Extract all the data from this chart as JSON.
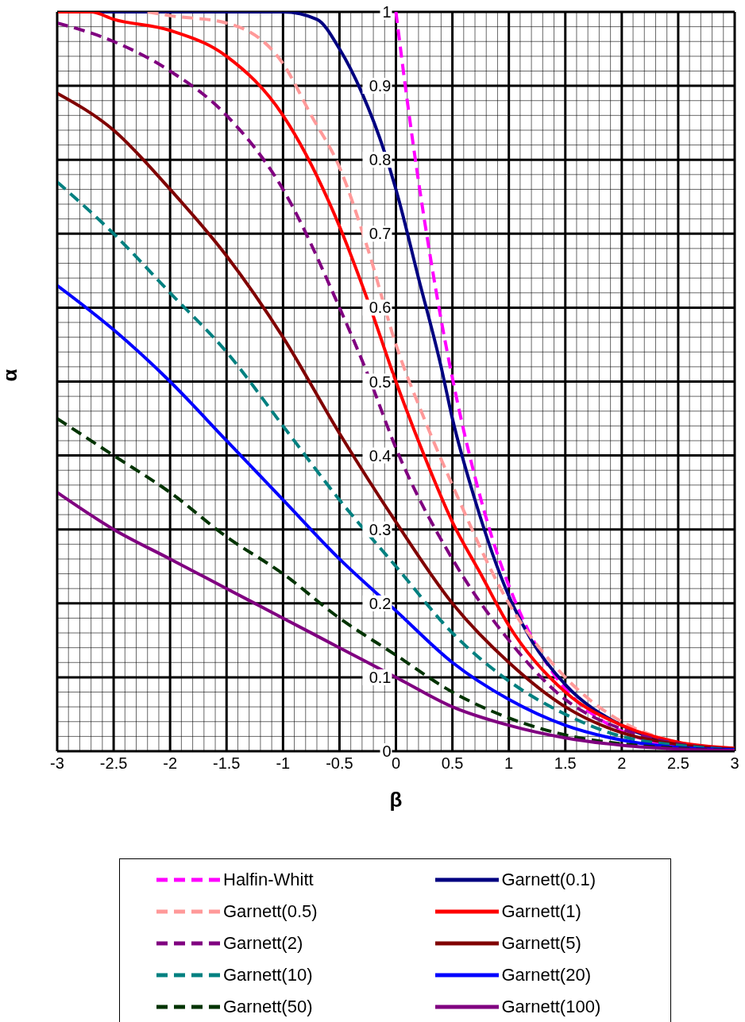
{
  "chart_data": {
    "type": "line",
    "xlabel": "β",
    "ylabel": "α",
    "xlim": [
      -3,
      3
    ],
    "xticks": [
      -3,
      -2.5,
      -2,
      -1.5,
      -1,
      -0.5,
      0,
      0.5,
      1,
      1.5,
      2,
      2.5,
      3
    ],
    "ylim": [
      0,
      1
    ],
    "yticks": [
      0,
      0.1,
      0.2,
      0.3,
      0.4,
      0.5,
      0.6,
      0.7,
      0.8,
      0.9,
      1
    ],
    "grid": true,
    "legend": "bottom",
    "marker": "none",
    "series": [
      {
        "name": "Halfin-Whitt",
        "color": "#ff00ff",
        "line_style": "dashed",
        "x": [
          0,
          0.1,
          0.2,
          0.3,
          0.4,
          0.5,
          0.6,
          0.7,
          0.8,
          0.9,
          1,
          1.2,
          1.4,
          1.6,
          1.8,
          2,
          2.5,
          3
        ],
        "values": [
          1,
          0.88,
          0.771,
          0.673,
          0.584,
          0.505,
          0.434,
          0.371,
          0.315,
          0.266,
          0.224,
          0.155,
          0.104,
          0.068,
          0.044,
          0.027,
          0.007,
          0.002
        ]
      },
      {
        "name": "Garnett(0.1)",
        "color": "#000080",
        "line_style": "solid",
        "x": [
          -3,
          -1,
          -0.7,
          -0.5,
          -0.3,
          -0.1,
          0,
          0.2,
          0.4,
          0.5,
          0.7,
          1,
          1.2,
          1.5,
          2,
          2.5,
          3
        ],
        "values": [
          1,
          1,
          0.99,
          0.95,
          0.89,
          0.81,
          0.76,
          0.64,
          0.52,
          0.45,
          0.34,
          0.21,
          0.15,
          0.09,
          0.035,
          0.01,
          0.003
        ]
      },
      {
        "name": "Garnett(0.5)",
        "color": "#ff9999",
        "line_style": "dashed",
        "x": [
          -2.2,
          -2,
          -1.5,
          -1,
          -0.75,
          -0.5,
          -0.25,
          0,
          0.25,
          0.5,
          1,
          1.5,
          2,
          2.5,
          3
        ],
        "values": [
          1,
          0.995,
          0.985,
          0.93,
          0.86,
          0.79,
          0.68,
          0.55,
          0.45,
          0.36,
          0.2,
          0.1,
          0.04,
          0.012,
          0.003
        ]
      },
      {
        "name": "Garnett(1)",
        "color": "#ff0000",
        "line_style": "solid",
        "x": [
          -3,
          -2.7,
          -2.5,
          -2,
          -1.5,
          -1,
          -0.5,
          -0.25,
          0,
          0.25,
          0.5,
          0.75,
          1,
          1.5,
          2,
          2.5,
          3
        ],
        "values": [
          1,
          1,
          0.99,
          0.975,
          0.94,
          0.86,
          0.71,
          0.61,
          0.5,
          0.4,
          0.31,
          0.24,
          0.17,
          0.08,
          0.035,
          0.012,
          0.004
        ]
      },
      {
        "name": "Garnett(2)",
        "color": "#800080",
        "line_style": "dashed",
        "x": [
          -3,
          -2.5,
          -2,
          -1.5,
          -1,
          -0.5,
          -0.25,
          0,
          0.5,
          1,
          1.5,
          2,
          2.5,
          3
        ],
        "values": [
          0.985,
          0.96,
          0.92,
          0.86,
          0.76,
          0.6,
          0.51,
          0.41,
          0.26,
          0.15,
          0.07,
          0.03,
          0.01,
          0.003
        ]
      },
      {
        "name": "Garnett(5)",
        "color": "#800000",
        "line_style": "solid",
        "x": [
          -3,
          -2.5,
          -2,
          -1.5,
          -1,
          -0.5,
          0,
          0.5,
          1,
          1.5,
          2,
          2.5,
          3
        ],
        "values": [
          0.89,
          0.84,
          0.76,
          0.67,
          0.56,
          0.43,
          0.31,
          0.2,
          0.12,
          0.06,
          0.025,
          0.009,
          0.003
        ]
      },
      {
        "name": "Garnett(10)",
        "color": "#008080",
        "line_style": "dashed",
        "x": [
          -3,
          -2.5,
          -2,
          -1.5,
          -1,
          -0.5,
          0,
          0.5,
          1,
          1.5,
          2,
          2.5,
          3
        ],
        "values": [
          0.77,
          0.7,
          0.62,
          0.54,
          0.44,
          0.34,
          0.25,
          0.16,
          0.095,
          0.05,
          0.02,
          0.008,
          0.002
        ]
      },
      {
        "name": "Garnett(20)",
        "color": "#0000ff",
        "line_style": "solid",
        "x": [
          -3,
          -2.5,
          -2,
          -1.5,
          -1,
          -0.5,
          0,
          0.5,
          1,
          1.5,
          2,
          2.5,
          3
        ],
        "values": [
          0.63,
          0.57,
          0.5,
          0.42,
          0.34,
          0.26,
          0.19,
          0.12,
          0.07,
          0.035,
          0.015,
          0.005,
          0.002
        ]
      },
      {
        "name": "Garnett(50)",
        "color": "#003300",
        "line_style": "dashed",
        "x": [
          -3,
          -2.5,
          -2,
          -1.5,
          -1,
          -0.5,
          0,
          0.5,
          1,
          1.5,
          2,
          2.5,
          3
        ],
        "values": [
          0.45,
          0.4,
          0.35,
          0.29,
          0.24,
          0.18,
          0.13,
          0.08,
          0.045,
          0.022,
          0.01,
          0.004,
          0.001
        ]
      },
      {
        "name": "Garnett(100)",
        "color": "#800080",
        "line_style": "solid",
        "x": [
          -3,
          -2.5,
          -2,
          -1.5,
          -1,
          -0.5,
          0,
          0.5,
          1,
          1.5,
          2,
          2.5,
          3
        ],
        "values": [
          0.35,
          0.3,
          0.26,
          0.22,
          0.18,
          0.14,
          0.1,
          0.06,
          0.035,
          0.018,
          0.008,
          0.003,
          0.001
        ]
      }
    ]
  }
}
